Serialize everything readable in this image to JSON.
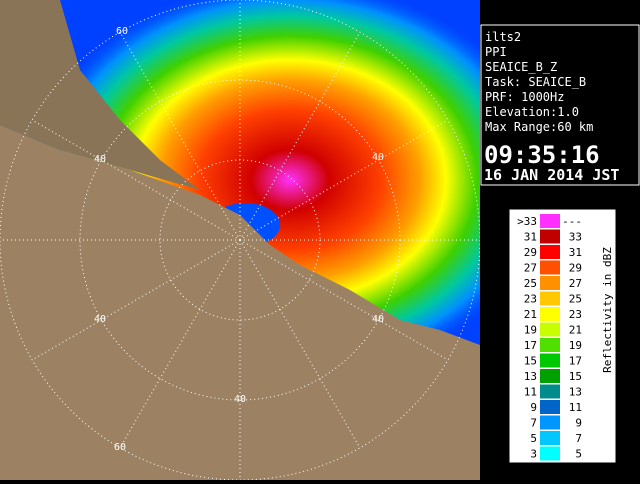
{
  "radar": {
    "ring_labels": [
      "60",
      "40",
      "40",
      "40",
      "40",
      "40",
      "60"
    ]
  },
  "info": {
    "lines": [
      "ilts2",
      "PPI",
      "SEAICE_B_Z",
      "Task: SEAICE_B",
      "PRF: 1000Hz",
      "Elevation:1.0",
      "Max Range:60 km"
    ],
    "time": "09:35:16",
    "date": "16 JAN 2014 JST"
  },
  "legend": {
    "title": "Reflectivity in dBZ",
    "rows": [
      {
        "low": ">33",
        "high": "---",
        "color": "#ff30ff"
      },
      {
        "low": "31",
        "high": "33",
        "color": "#c00000"
      },
      {
        "low": "29",
        "high": "31",
        "color": "#ff0000"
      },
      {
        "low": "27",
        "high": "29",
        "color": "#ff5000"
      },
      {
        "low": "25",
        "high": "27",
        "color": "#ff9000"
      },
      {
        "low": "23",
        "high": "25",
        "color": "#ffc800"
      },
      {
        "low": "21",
        "high": "23",
        "color": "#ffff00"
      },
      {
        "low": "19",
        "high": "21",
        "color": "#c8ff00"
      },
      {
        "low": "17",
        "high": "19",
        "color": "#50e000"
      },
      {
        "low": "15",
        "high": "17",
        "color": "#00c800"
      },
      {
        "low": "13",
        "high": "15",
        "color": "#00a000"
      },
      {
        "low": "11",
        "high": "13",
        "color": "#008c8c"
      },
      {
        "low": "9",
        "high": "11",
        "color": "#0064c8"
      },
      {
        "low": "7",
        "high": "9",
        "color": "#0096ff"
      },
      {
        "low": "5",
        "high": "7",
        "color": "#00c8ff"
      },
      {
        "low": "3",
        "high": "5",
        "color": "#00ffff"
      }
    ]
  }
}
